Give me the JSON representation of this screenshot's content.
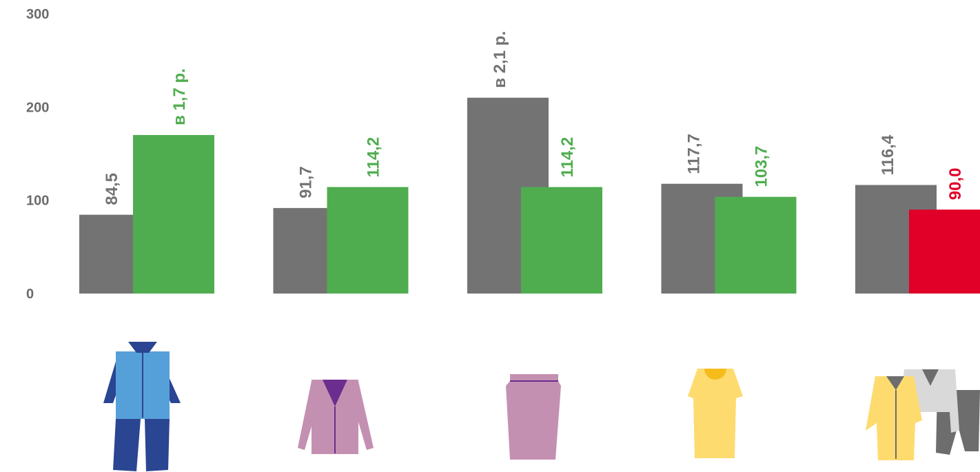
{
  "chart_data": {
    "type": "bar",
    "ylim": [
      0,
      300
    ],
    "yticks": [
      "0",
      "100",
      "200",
      "300"
    ],
    "grid": false,
    "colors": {
      "series1": "#737373",
      "series2_good": "#4fad4f",
      "series2_bad": "#e00028"
    },
    "groups": [
      {
        "icon": "workwear-suit-icon",
        "values": [
          84.5,
          170
        ],
        "labels": [
          "84,5",
          "в 1,7 р."
        ],
        "second_color": "series2_good"
      },
      {
        "icon": "women-jacket-icon",
        "values": [
          91.7,
          114.2
        ],
        "labels": [
          "91,7",
          "114,2"
        ],
        "second_color": "series2_good"
      },
      {
        "icon": "skirt-icon",
        "values": [
          210,
          114.2
        ],
        "labels": [
          "в 2,1 р.",
          "114,2"
        ],
        "second_color": "series2_good"
      },
      {
        "icon": "dress-icon",
        "values": [
          117.7,
          103.7
        ],
        "labels": [
          "117,7",
          "103,7"
        ],
        "second_color": "series2_good"
      },
      {
        "icon": "coat-and-suit-icon",
        "values": [
          116.4,
          90.0
        ],
        "labels": [
          "116,4",
          "90,0"
        ],
        "second_color": "series2_bad"
      }
    ]
  }
}
